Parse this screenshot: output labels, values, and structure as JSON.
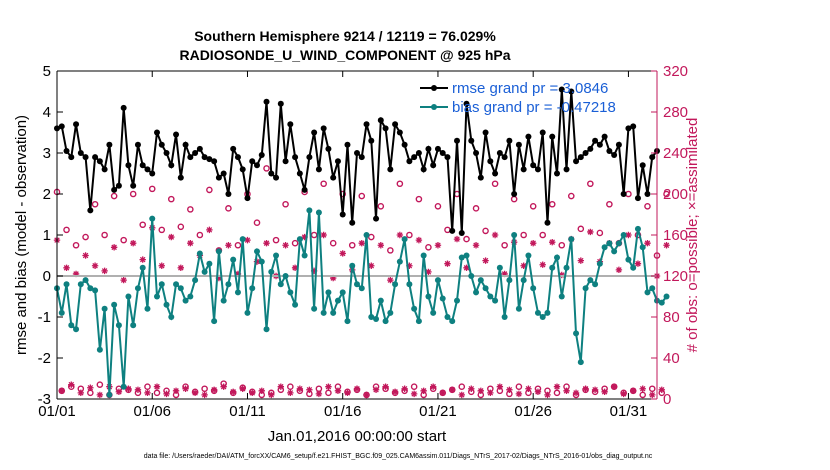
{
  "chart_data": {
    "type": "line",
    "title_line1": "Southern Hemisphere 9214 / 12119 = 76.029%",
    "title_line2": "RADIOSONDE_U_WIND_COMPONENT @ 925 hPa",
    "xlabel": "Jan.01,2016 00:00:00 start",
    "ylabel": "rmse and bias (model - observation)",
    "y2label": "# of obs: o=possible; ×=assimilated",
    "xlim": [
      0,
      31.5
    ],
    "ylim": [
      -3,
      5
    ],
    "y2lim": [
      0,
      320
    ],
    "x_ticks": [
      0,
      5,
      10,
      15,
      20,
      25,
      30
    ],
    "x_tick_labels": [
      "01/01",
      "01/06",
      "01/11",
      "01/16",
      "01/21",
      "01/26",
      "01/31"
    ],
    "y_ticks": [
      -3,
      -2,
      -1,
      0,
      1,
      2,
      3,
      4,
      5
    ],
    "y_tick_labels": [
      "-3",
      "-2",
      "-1",
      "0",
      "1",
      "2",
      "3",
      "4",
      "5"
    ],
    "y2_ticks": [
      0,
      40,
      80,
      120,
      160,
      200,
      240,
      280,
      320
    ],
    "y2_tick_labels": [
      "0",
      "40",
      "80",
      "120",
      "160",
      "200",
      "240",
      "280",
      "320"
    ],
    "legend": {
      "position": "top-right",
      "entries": [
        "rmse grand pr = 3.0846",
        "bias grand pr = -0.47218"
      ]
    },
    "colors": {
      "rmse": "#000000",
      "bias": "#0e8080",
      "counts": "#c2185b",
      "zero_line": "#b0b0b0"
    },
    "x_step_days": 0.25,
    "series": [
      {
        "name": "rmse",
        "values": [
          3.6,
          3.65,
          3.05,
          2.9,
          3.7,
          3.0,
          2.9,
          1.6,
          2.9,
          2.8,
          2.6,
          3.2,
          2.1,
          2.2,
          4.1,
          2.7,
          2.2,
          3.2,
          2.7,
          2.6,
          2.5,
          3.5,
          3.2,
          3.0,
          2.7,
          3.45,
          2.4,
          3.2,
          2.9,
          3.0,
          3.1,
          2.9,
          2.85,
          2.8,
          2.4,
          2.5,
          2.0,
          3.1,
          2.9,
          2.6,
          1.9,
          2.8,
          2.7,
          2.95,
          4.25,
          2.5,
          2.4,
          4.2,
          2.8,
          3.7,
          2.9,
          2.5,
          2.1,
          2.9,
          3.5,
          2.6,
          3.6,
          3.1,
          2.4,
          2.8,
          1.5,
          3.2,
          1.3,
          3.0,
          2.9,
          3.7,
          3.3,
          1.4,
          3.8,
          3.6,
          2.6,
          3.7,
          3.5,
          3.2,
          2.8,
          2.9,
          3.0,
          2.6,
          3.1,
          2.7,
          3.1,
          3.0,
          2.9,
          1.1,
          3.3,
          1.05,
          4.2,
          3.3,
          3.0,
          2.4,
          3.5,
          2.8,
          2.5,
          3.0,
          2.9,
          3.3,
          2.0,
          3.2,
          2.6,
          3.4,
          2.7,
          2.6,
          3.5,
          1.3,
          3.4,
          2.5,
          4.55,
          2.6,
          4.5,
          2.8,
          2.9,
          3.0,
          3.1,
          3.3,
          3.2,
          3.4,
          3.05,
          2.95,
          3.2,
          2.0,
          3.6,
          3.65,
          1.9,
          2.7,
          2.0,
          2.9,
          3.05
        ]
      },
      {
        "name": "bias",
        "values": [
          -0.3,
          -0.9,
          -0.2,
          -1.2,
          -1.3,
          -0.2,
          -0.1,
          -0.3,
          -0.35,
          -1.8,
          -0.8,
          -2.9,
          -0.7,
          -1.2,
          -2.7,
          -0.5,
          -1.2,
          -0.3,
          0.2,
          -0.8,
          1.4,
          -0.5,
          -0.2,
          -0.7,
          -1.0,
          -0.2,
          -0.3,
          -0.6,
          -0.5,
          -0.1,
          0.55,
          0.1,
          0.3,
          -1.1,
          0.6,
          -0.6,
          -0.2,
          0.4,
          -0.4,
          0.9,
          -0.9,
          -0.3,
          0.6,
          0.35,
          -1.3,
          0.1,
          0.5,
          -0.2,
          0.0,
          -0.4,
          -0.7,
          0.9,
          0.5,
          1.6,
          -0.8,
          1.55,
          -0.9,
          -0.4,
          -0.9,
          -0.6,
          -0.4,
          -1.1,
          0.25,
          -0.2,
          -0.3,
          1.0,
          -1.0,
          -1.05,
          -0.6,
          -1.1,
          -0.9,
          -0.2,
          0.35,
          0.9,
          -0.2,
          -0.8,
          -1.1,
          0.5,
          -0.5,
          -0.9,
          -0.1,
          -0.55,
          -1.0,
          -1.1,
          -0.6,
          0.45,
          0.5,
          0.0,
          -0.4,
          -0.1,
          -0.3,
          -0.5,
          -0.6,
          0.2,
          -1.0,
          -0.1,
          1.0,
          -0.8,
          -0.1,
          0.5,
          -0.3,
          -0.9,
          -1.0,
          -0.9,
          0.2,
          0.45,
          -0.5,
          0.2,
          0.9,
          -1.4,
          -2.1,
          -0.3,
          -0.1,
          -0.2,
          0.3,
          0.7,
          0.8,
          0.6,
          0.8,
          1.0,
          0.4,
          0.2,
          1.15,
          0.7,
          -0.4,
          -0.3,
          -0.6,
          -0.65,
          -0.5
        ]
      },
      {
        "name": "possible obs (o)",
        "axis": "right",
        "values": [
          202,
          8,
          165,
          12,
          150,
          10,
          158,
          6,
          190,
          14,
          160,
          4,
          198,
          10,
          155,
          9,
          200,
          6,
          170,
          12,
          205,
          6,
          165,
          8,
          195,
          4,
          168,
          12,
          185,
          7,
          160,
          10,
          204,
          8,
          145,
          15,
          186,
          6,
          150,
          11,
          200,
          7,
          172,
          4,
          225,
          6,
          155,
          9,
          190,
          12,
          152,
          8,
          202,
          5,
          160,
          10,
          210,
          6,
          152,
          12,
          200,
          7,
          150,
          9,
          198,
          4,
          158,
          12,
          188,
          10,
          145,
          6,
          210,
          8,
          160,
          12,
          195,
          4,
          148,
          10,
          188,
          6,
          165,
          9,
          200,
          12,
          156,
          7,
          186,
          4,
          164,
          10,
          210,
          8,
          150,
          5,
          195,
          12,
          160,
          6,
          188,
          10,
          160,
          8,
          190,
          6,
          150,
          12,
          198,
          4,
          166,
          9,
          210,
          7,
          162,
          10,
          190,
          12,
          152,
          6,
          200,
          8,
          160,
          4,
          188,
          10,
          140,
          6,
          200
        ]
      },
      {
        "name": "assimilated obs (×)",
        "axis": "right",
        "values": [
          155,
          8,
          128,
          14,
          122,
          6,
          140,
          11,
          130,
          4,
          125,
          12,
          148,
          7,
          116,
          10,
          152,
          9,
          136,
          6,
          167,
          12,
          130,
          5,
          158,
          8,
          128,
          10,
          152,
          6,
          140,
          4,
          165,
          9,
          118,
          12,
          150,
          7,
          122,
          10,
          155,
          6,
          134,
          8,
          152,
          4,
          120,
          12,
          150,
          6,
          128,
          10,
          158,
          9,
          125,
          5,
          160,
          12,
          118,
          8,
          142,
          6,
          126,
          10,
          152,
          4,
          130,
          9,
          150,
          12,
          116,
          7,
          160,
          10,
          130,
          5,
          155,
          8,
          124,
          12,
          150,
          6,
          132,
          9,
          156,
          4,
          128,
          10,
          150,
          8,
          135,
          6,
          160,
          12,
          122,
          9,
          153,
          5,
          130,
          10,
          152,
          7,
          131,
          4,
          153,
          12,
          121,
          8,
          156,
          6,
          135,
          10,
          163,
          9,
          134,
          7,
          152,
          12,
          126,
          5,
          160,
          8,
          132,
          10,
          152,
          4,
          120,
          9,
          150
        ]
      }
    ]
  },
  "footer": "data file: /Users/raeder/DAI/ATM_forcXX/CAM6_setup/f.e21.FHIST_BGC.f09_025.CAM6assim.011/Diags_NTrS_2017-02/Diags_NTrS_2016-01/obs_diag_output.nc"
}
